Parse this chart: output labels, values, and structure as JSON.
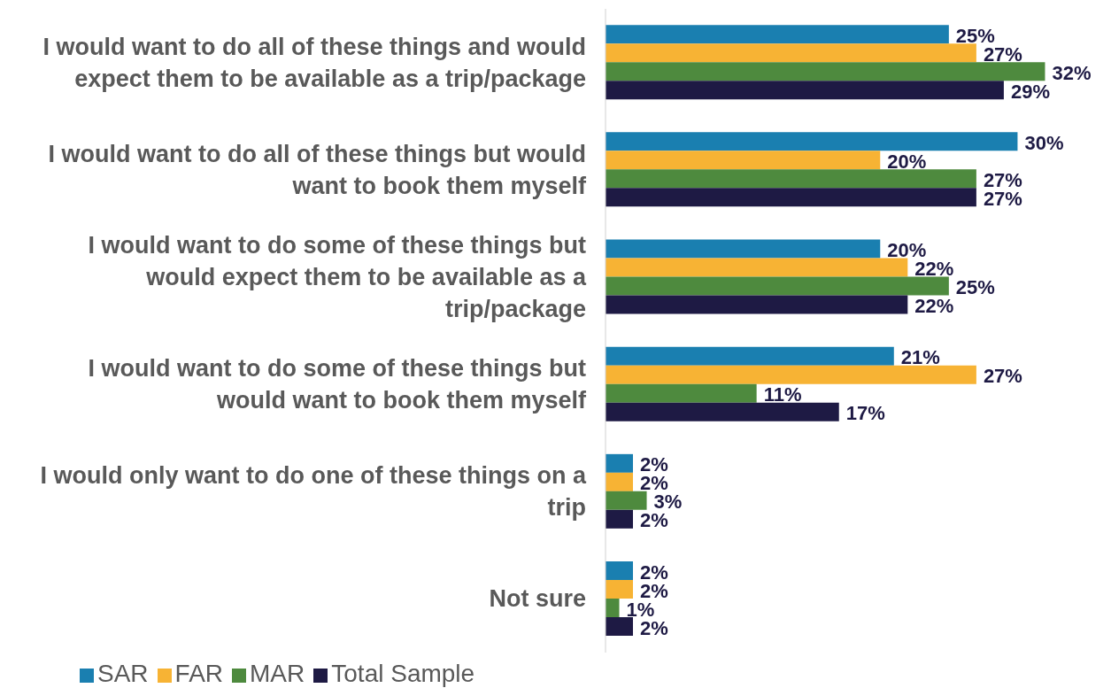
{
  "chart_data": {
    "type": "bar",
    "orientation": "horizontal",
    "categories": [
      "I would want to do all of these things and would expect them to be available as a trip/package",
      "I would want to do all of these things but would want to book them myself",
      "I would want to do some of these things but would expect them to be available as a trip/package",
      "I would want to do some of these things but would want to book them myself",
      "I would only want to do one of these things on a trip",
      "Not sure"
    ],
    "series": [
      {
        "name": "SAR",
        "color": "#1a7fb0",
        "values": [
          25,
          30,
          20,
          21,
          2,
          2
        ],
        "value_labels": [
          "25%",
          "30%",
          "20%",
          "21%",
          "2%",
          "2%"
        ]
      },
      {
        "name": "FAR",
        "color": "#f7b334",
        "values": [
          27,
          20,
          22,
          27,
          2,
          2
        ],
        "value_labels": [
          "27%",
          "20%",
          "22%",
          "27%",
          "2%",
          "2%"
        ]
      },
      {
        "name": "MAR",
        "color": "#4e8a3e",
        "values": [
          32,
          27,
          25,
          11,
          3,
          1
        ],
        "value_labels": [
          "32%",
          "27%",
          "25%",
          "11%",
          "3%",
          "1%"
        ]
      },
      {
        "name": "Total Sample",
        "color": "#1e1a44",
        "values": [
          29,
          27,
          22,
          17,
          2,
          2
        ],
        "value_labels": [
          "29%",
          "27%",
          "22%",
          "17%",
          "2%",
          "2%"
        ]
      }
    ],
    "legend": "bottom left"
  }
}
